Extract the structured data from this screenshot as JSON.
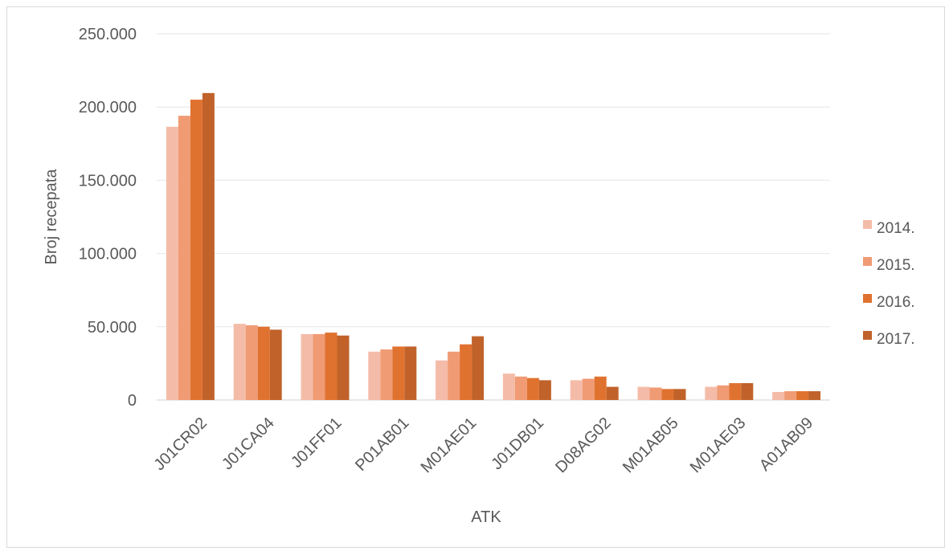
{
  "chart_data": {
    "type": "bar",
    "title": "",
    "xlabel": "ATK",
    "ylabel": "Broj recepata",
    "ylim": [
      0,
      250000
    ],
    "yticks": [
      0,
      50000,
      100000,
      150000,
      200000,
      250000
    ],
    "ytick_labels": [
      "0",
      "50.000",
      "100.000",
      "150.000",
      "200.000",
      "250.000"
    ],
    "grid": true,
    "legend_position": "right",
    "categories": [
      "J01CR02",
      "J01CA04",
      "J01FF01",
      "P01AB01",
      "M01AE01",
      "J01DB01",
      "D08AG02",
      "M01AB05",
      "M01AE03",
      "A01AB09"
    ],
    "series": [
      {
        "name": "2014.",
        "color": "#f4bca8",
        "values": [
          186500,
          52000,
          45000,
          33000,
          27000,
          18000,
          13500,
          9000,
          9000,
          5500
        ]
      },
      {
        "name": "2015.",
        "color": "#f09b74",
        "values": [
          194000,
          51000,
          45000,
          34500,
          33000,
          16000,
          14500,
          8500,
          10000,
          6000
        ]
      },
      {
        "name": "2016.",
        "color": "#e07230",
        "values": [
          205000,
          50000,
          46000,
          36500,
          38000,
          15000,
          16000,
          7500,
          11500,
          6000
        ]
      },
      {
        "name": "2017.",
        "color": "#c0622a",
        "values": [
          209500,
          48000,
          44000,
          36500,
          43500,
          13500,
          9000,
          7500,
          11500,
          6000
        ]
      }
    ]
  }
}
